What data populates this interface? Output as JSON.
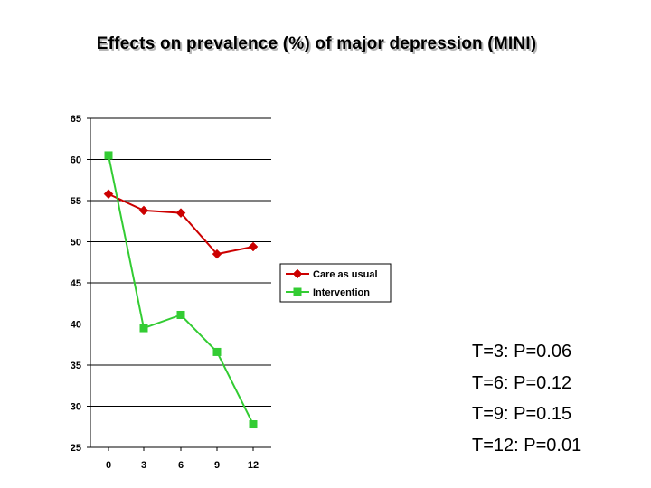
{
  "title": "Effects on prevalence (%) of major depression (MINI)",
  "chart_data": {
    "type": "line",
    "x": [
      0,
      3,
      6,
      9,
      12
    ],
    "x_tick_labels": [
      "0",
      "3",
      "6",
      "9",
      "12"
    ],
    "ylim": [
      25,
      65
    ],
    "y_ticks": [
      25,
      30,
      35,
      40,
      45,
      50,
      55,
      60,
      65
    ],
    "grid": "horizontal",
    "legend_position": "right",
    "series": [
      {
        "name": "Care as usual",
        "color": "#cc0000",
        "marker": "diamond",
        "values": [
          55.8,
          53.8,
          53.5,
          48.5,
          49.4
        ]
      },
      {
        "name": "Intervention",
        "color": "#33cc33",
        "marker": "square",
        "values": [
          60.5,
          39.5,
          41.1,
          36.6,
          27.8
        ]
      }
    ]
  },
  "stats": [
    "T=3: P=0.06",
    "T=6: P=0.12",
    "T=9: P=0.15",
    "T=12: P=0.01"
  ]
}
